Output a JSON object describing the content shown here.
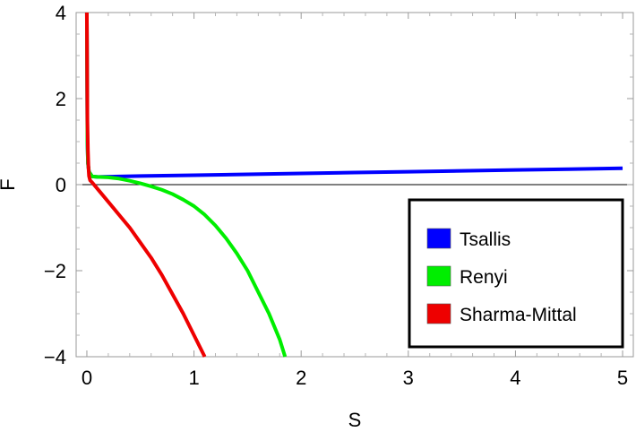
{
  "chart_data": {
    "type": "line",
    "title": "",
    "xlabel": "S",
    "ylabel": "F",
    "xlim": [
      -0.1,
      5.1
    ],
    "ylim": [
      -4,
      4
    ],
    "x_ticks": [
      0,
      1,
      2,
      3,
      4,
      5
    ],
    "x_tick_labels": [
      "0",
      "1",
      "2",
      "3",
      "4",
      "5"
    ],
    "y_ticks": [
      -4,
      -2,
      0,
      2,
      4
    ],
    "y_tick_labels": [
      "−4",
      "−2",
      "0",
      "2",
      "4"
    ],
    "grid": false,
    "zero_line": true,
    "legend_position": "bottom-right",
    "series": [
      {
        "name": "Tsallis",
        "color": "#0000ff",
        "x": [
          0.0,
          0.005,
          0.01,
          0.02,
          0.05,
          0.1,
          0.5,
          1,
          1.5,
          2,
          2.5,
          3,
          3.5,
          4,
          4.5,
          5
        ],
        "y": [
          4.0,
          1.0,
          0.5,
          0.3,
          0.19,
          0.18,
          0.2,
          0.22,
          0.24,
          0.26,
          0.28,
          0.3,
          0.32,
          0.34,
          0.36,
          0.38
        ]
      },
      {
        "name": "Renyi",
        "color": "#00ee00",
        "x": [
          0.0,
          0.005,
          0.01,
          0.02,
          0.05,
          0.1,
          0.2,
          0.3,
          0.4,
          0.5,
          0.6,
          0.7,
          0.8,
          0.9,
          1.0,
          1.1,
          1.2,
          1.3,
          1.4,
          1.5,
          1.6,
          1.7,
          1.8,
          1.85
        ],
        "y": [
          4.0,
          1.0,
          0.5,
          0.3,
          0.19,
          0.18,
          0.17,
          0.14,
          0.09,
          0.03,
          -0.04,
          -0.12,
          -0.22,
          -0.35,
          -0.5,
          -0.7,
          -0.95,
          -1.25,
          -1.6,
          -2.0,
          -2.5,
          -3.0,
          -3.6,
          -4.0
        ]
      },
      {
        "name": "Sharma-Mittal",
        "color": "#ee0000",
        "x": [
          0.0,
          0.005,
          0.01,
          0.015,
          0.02,
          0.03,
          0.05,
          0.1,
          0.2,
          0.3,
          0.4,
          0.5,
          0.6,
          0.7,
          0.8,
          0.9,
          1.0,
          1.1
        ],
        "y": [
          4.0,
          1.5,
          0.8,
          0.4,
          0.2,
          0.1,
          0.05,
          -0.1,
          -0.4,
          -0.7,
          -1.0,
          -1.35,
          -1.7,
          -2.1,
          -2.55,
          -3.0,
          -3.5,
          -4.0
        ]
      }
    ]
  }
}
